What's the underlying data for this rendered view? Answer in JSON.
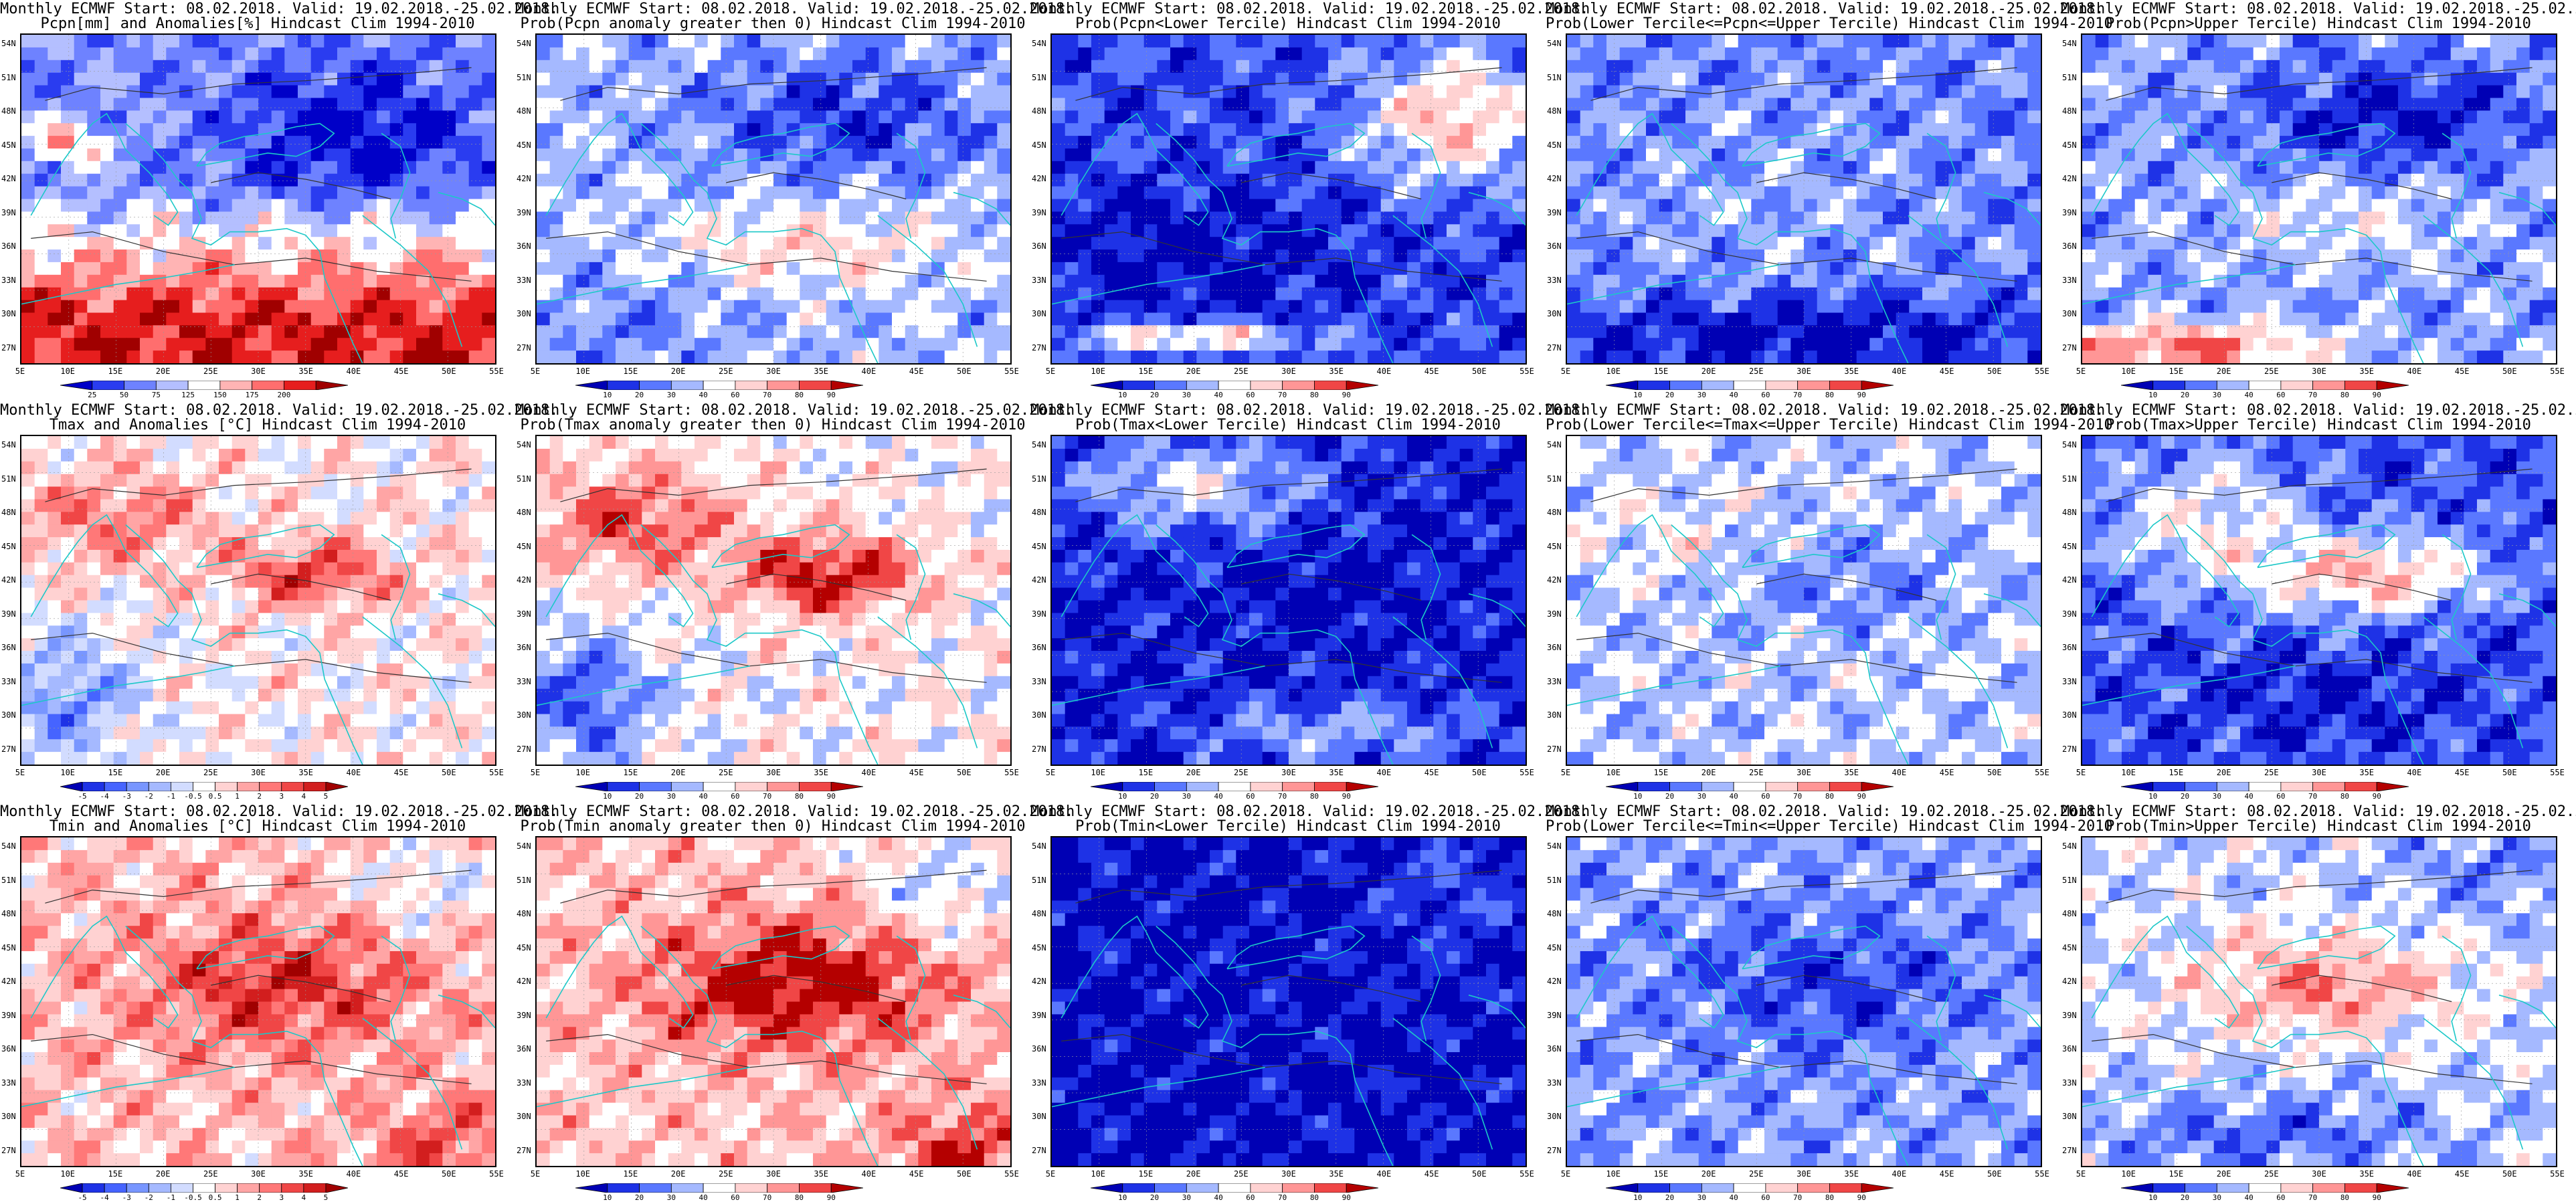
{
  "latitude_labels": [
    "54N",
    "51N",
    "48N",
    "45N",
    "42N",
    "39N",
    "36N",
    "33N",
    "30N",
    "27N"
  ],
  "longitude_labels": [
    "5E",
    "10E",
    "15E",
    "20E",
    "25E",
    "30E",
    "35E",
    "40E",
    "45E",
    "50E",
    "55E"
  ],
  "colorbars": {
    "precip_anom": {
      "labels": [
        "25",
        "50",
        "75",
        "125",
        "150",
        "175",
        "200"
      ],
      "colors": [
        "#0000c8",
        "#2a3cf0",
        "#6e82ff",
        "#b4bfff",
        "#ffffff",
        "#ffb4b4",
        "#ff6e6e",
        "#e61e1e",
        "#a00000"
      ]
    },
    "temp_anom": {
      "labels": [
        "-5",
        "-4",
        "-3",
        "-2",
        "-1",
        "-0.5",
        "0.5",
        "1",
        "2",
        "3",
        "4",
        "5"
      ],
      "colors": [
        "#0000b4",
        "#1e32e6",
        "#4664ff",
        "#7896ff",
        "#a5b9ff",
        "#d2dcff",
        "#ffffff",
        "#ffd2d2",
        "#ffa5a5",
        "#ff7878",
        "#f04646",
        "#d21e1e",
        "#a00000"
      ]
    },
    "prob": {
      "labels": [
        "10",
        "20",
        "30",
        "40",
        "60",
        "70",
        "80",
        "90"
      ],
      "colors": [
        "#0000b4",
        "#1e32e6",
        "#5a78ff",
        "#a5b9ff",
        "#ffffff",
        "#ffd2d2",
        "#ff9696",
        "#f04646",
        "#b40000"
      ]
    }
  },
  "panels": [
    {
      "title1": "Monthly ECMWF Start: 08.02.2018. Valid: 19.02.2018.-25.02.2018.",
      "title2": "Pcpn[mm] and Anomalies[%] Hindcast Clim 1994-2010",
      "colorbar": "precip_anom",
      "field": "precip_amount"
    },
    {
      "title1": "Monthly ECMWF Start: 08.02.2018. Valid: 19.02.2018.-25.02.2018.",
      "title2": "Prob(Pcpn anomaly greater then 0) Hindcast Clim 1994-2010",
      "colorbar": "prob",
      "field": "precip_pos"
    },
    {
      "title1": "Monthly ECMWF Start: 08.02.2018. Valid: 19.02.2018.-25.02.2018.",
      "title2": "Prob(Pcpn<Lower Tercile) Hindcast Clim 1994-2010",
      "colorbar": "prob",
      "field": "precip_low"
    },
    {
      "title1": "Monthly ECMWF Start: 08.02.2018. Valid: 19.02.2018.-25.02.2018.",
      "title2": "Prob(Lower Tercile<=Pcpn<=Upper Tercile) Hindcast Clim 1994-2010",
      "colorbar": "prob",
      "field": "precip_mid"
    },
    {
      "title1": "Monthly ECMWF Start: 08.02.2018. Valid: 19.02.2018.-25.02.2018.",
      "title2": "Prob(Pcpn>Upper Tercile) Hindcast Clim 1994-2010",
      "colorbar": "prob",
      "field": "precip_up"
    },
    {
      "title1": "Monthly ECMWF Start: 08.02.2018. Valid: 19.02.2018.-25.02.2018.",
      "title2": "Tmax and Anomalies [°C] Hindcast Clim 1994-2010",
      "colorbar": "temp_anom",
      "field": "tmax_anom"
    },
    {
      "title1": "Monthly ECMWF Start: 08.02.2018. Valid: 19.02.2018.-25.02.2018.",
      "title2": "Prob(Tmax anomaly greater then 0) Hindcast Clim 1994-2010",
      "colorbar": "prob",
      "field": "tmax_pos"
    },
    {
      "title1": "Monthly ECMWF Start: 08.02.2018. Valid: 19.02.2018.-25.02.2018.",
      "title2": "Prob(Tmax<Lower Tercile) Hindcast Clim 1994-2010",
      "colorbar": "prob",
      "field": "tmax_low"
    },
    {
      "title1": "Monthly ECMWF Start: 08.02.2018. Valid: 19.02.2018.-25.02.2018.",
      "title2": "Prob(Lower Tercile<=Tmax<=Upper Tercile) Hindcast Clim 1994-2010",
      "colorbar": "prob",
      "field": "tmax_mid"
    },
    {
      "title1": "Monthly ECMWF Start: 08.02.2018. Valid: 19.02.2018.-25.02.2018.",
      "title2": "Prob(Tmax>Upper Tercile) Hindcast Clim 1994-2010",
      "colorbar": "prob",
      "field": "tmax_up"
    },
    {
      "title1": "Monthly ECMWF Start: 08.02.2018. Valid: 19.02.2018.-25.02.2018.",
      "title2": "Tmin and Anomalies [°C] Hindcast Clim 1994-2010",
      "colorbar": "temp_anom",
      "field": "tmin_anom"
    },
    {
      "title1": "Monthly ECMWF Start: 08.02.2018. Valid: 19.02.2018.-25.02.2018.",
      "title2": "Prob(Tmin anomaly greater then 0) Hindcast Clim 1994-2010",
      "colorbar": "prob",
      "field": "tmin_pos"
    },
    {
      "title1": "Monthly ECMWF Start: 08.02.2018. Valid: 19.02.2018.-25.02.2018.",
      "title2": "Prob(Tmin<Lower Tercile) Hindcast Clim 1994-2010",
      "colorbar": "prob",
      "field": "tmin_low"
    },
    {
      "title1": "Monthly ECMWF Start: 08.02.2018. Valid: 19.02.2018.-25.02.2018.",
      "title2": "Prob(Lower Tercile<=Tmin<=Upper Tercile) Hindcast Clim 1994-2010",
      "colorbar": "prob",
      "field": "tmin_mid"
    },
    {
      "title1": "Monthly ECMWF Start: 08.02.2018. Valid: 19.02.2018.-25.02.2018.",
      "title2": "Prob(Tmin>Upper Tercile) Hindcast Clim 1994-2010",
      "colorbar": "prob",
      "field": "tmin_up"
    }
  ]
}
